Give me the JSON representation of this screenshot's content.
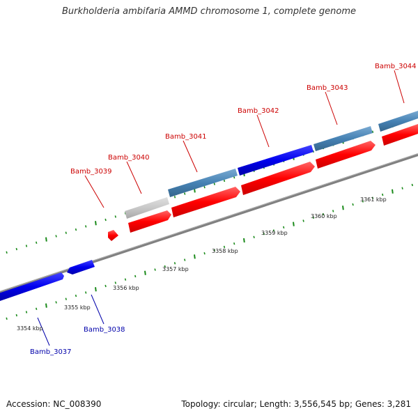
{
  "title": "Burkholderia ambifaria AMMD chromosome 1, complete genome",
  "footer": {
    "accession": "Accession: NC_008390",
    "summary": "Topology: circular; Length: 3,556,545 bp; Genes: 3,281"
  },
  "colors": {
    "forward_strand_gene": "#ff0000",
    "reverse_strand_gene": "#0000ff",
    "steelblue_feature": "#4682b4",
    "grey_feature": "#c8c8c8",
    "backbone": "#808080",
    "tick": "#1a8a1a",
    "label_forward": "#cc0000",
    "label_reverse": "#0000aa"
  },
  "scale": {
    "unit": "kbp",
    "labels": [
      "3354 kbp",
      "3355 kbp",
      "3356 kbp",
      "3357 kbp",
      "3358 kbp",
      "3359 kbp",
      "3360 kbp",
      "3361 kbp"
    ]
  },
  "gene_labels": {
    "top": [
      "Bamb_3039",
      "Bamb_3040",
      "Bamb_3041",
      "Bamb_3042",
      "Bamb_3043",
      "Bamb_3044"
    ],
    "bottom": [
      "Bamb_3037",
      "Bamb_3038"
    ]
  }
}
